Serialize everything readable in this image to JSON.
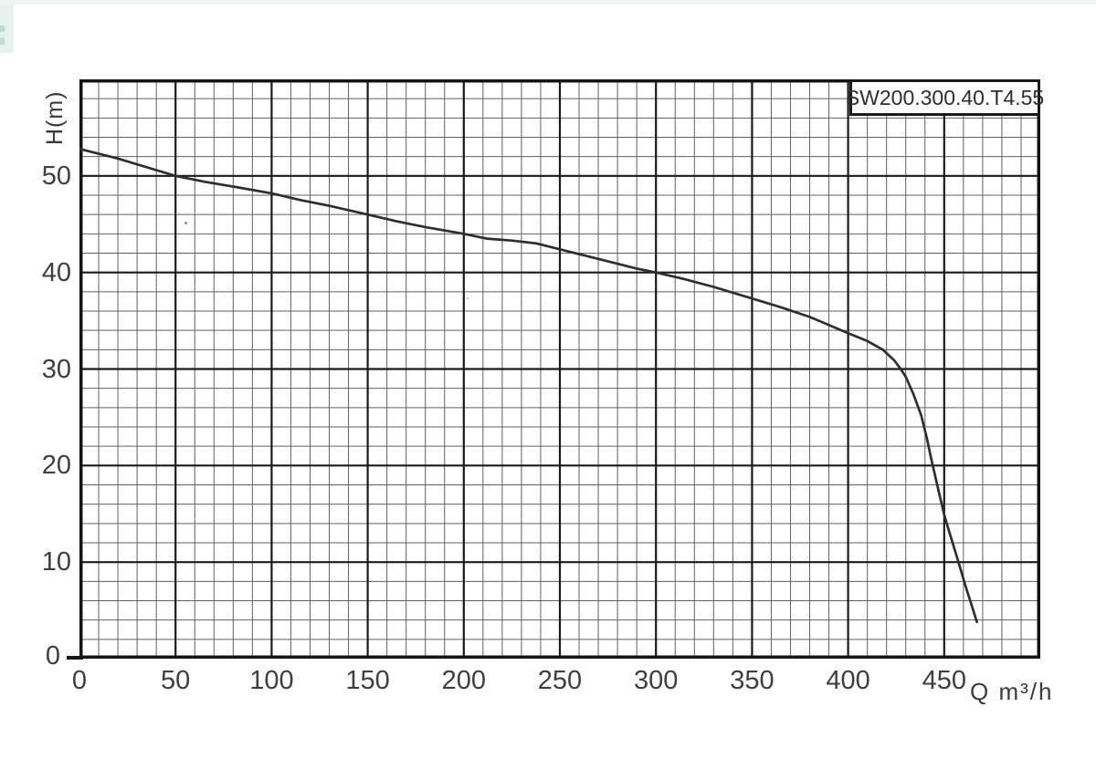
{
  "decoration": {
    "corner_strip_color": "#e7f1ee",
    "corner_chip_color": "#bcd8d0"
  },
  "chart_data": {
    "type": "line",
    "title": "SW200.300.40.T4.55",
    "xlabel": "Q m³/h",
    "ylabel": "H(m)",
    "x_range": [
      0,
      500
    ],
    "y_range": [
      0,
      60
    ],
    "x_major_step": 50,
    "x_minor_step": 10,
    "y_major_step": 10,
    "y_minor_step": 2,
    "x_tick_labels": [
      0,
      50,
      100,
      150,
      200,
      250,
      300,
      350,
      400,
      450
    ],
    "y_tick_labels": [
      0,
      10,
      20,
      30,
      40,
      50
    ],
    "grid": "minor and major lines, full frame border",
    "legend_position": "none",
    "series": [
      {
        "name": "SW200.300.40.T4.55 head-flow curve",
        "points": [
          [
            0,
            52.8
          ],
          [
            20,
            51.8
          ],
          [
            40,
            50.6
          ],
          [
            50,
            50.0
          ],
          [
            65,
            49.4
          ],
          [
            80,
            48.9
          ],
          [
            100,
            48.2
          ],
          [
            115,
            47.5
          ],
          [
            130,
            46.9
          ],
          [
            150,
            46.0
          ],
          [
            165,
            45.3
          ],
          [
            180,
            44.7
          ],
          [
            200,
            44.0
          ],
          [
            212,
            43.5
          ],
          [
            225,
            43.3
          ],
          [
            238,
            43.0
          ],
          [
            250,
            42.4
          ],
          [
            262,
            41.8
          ],
          [
            278,
            41.0
          ],
          [
            290,
            40.4
          ],
          [
            300,
            40.0
          ],
          [
            315,
            39.3
          ],
          [
            330,
            38.5
          ],
          [
            350,
            37.3
          ],
          [
            365,
            36.4
          ],
          [
            380,
            35.4
          ],
          [
            400,
            33.7
          ],
          [
            410,
            32.9
          ],
          [
            418,
            32.0
          ],
          [
            424,
            30.9
          ],
          [
            427,
            30.1
          ],
          [
            430,
            29.2
          ],
          [
            434,
            27.4
          ],
          [
            438,
            25.2
          ],
          [
            441,
            22.8
          ],
          [
            443,
            20.9
          ],
          [
            446,
            18.3
          ],
          [
            450,
            14.9
          ],
          [
            453,
            12.9
          ],
          [
            457,
            10.3
          ],
          [
            461,
            7.6
          ],
          [
            464,
            5.7
          ],
          [
            467,
            3.8
          ]
        ]
      }
    ],
    "colors": {
      "curve": "#2e2e2e",
      "grid_minor": "#606060",
      "grid_major": "#1a1a1a",
      "frame": "#141414",
      "text": "#3f3f3f"
    }
  }
}
